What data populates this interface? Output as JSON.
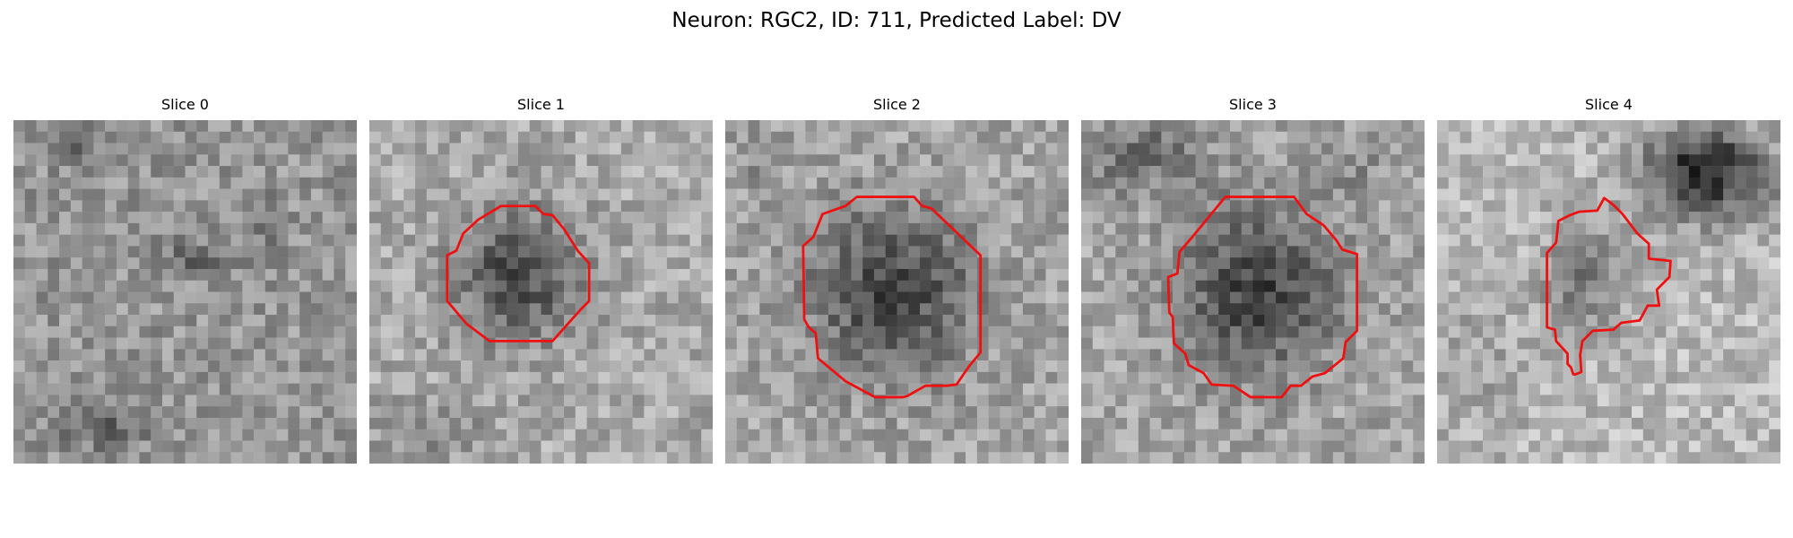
{
  "figure": {
    "title": "Neuron: RGC2, ID: 711, Predicted Label: DV",
    "colormap": "grayscale",
    "outline_color": "#ee1111"
  },
  "slices": [
    {
      "title": "Slice 0",
      "has_outline": false
    },
    {
      "title": "Slice 1",
      "has_outline": true
    },
    {
      "title": "Slice 2",
      "has_outline": true
    },
    {
      "title": "Slice 3",
      "has_outline": true
    },
    {
      "title": "Slice 4",
      "has_outline": true
    }
  ]
}
